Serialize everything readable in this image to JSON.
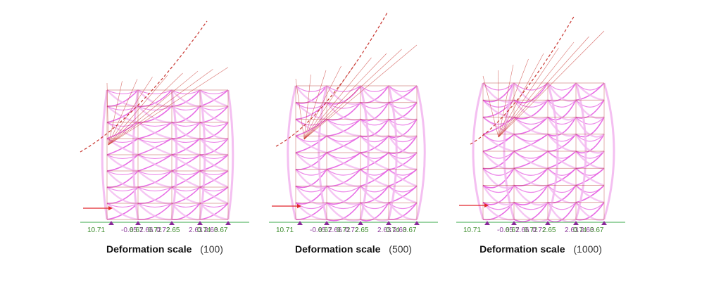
{
  "panels": [
    {
      "caption_label": "Deformation scale",
      "caption_value": "(100)",
      "base_labels": [
        "10.71",
        "-0.65",
        "0.67",
        "2.66",
        "0.72",
        "0.72",
        "2.65",
        "2.63",
        "0.74",
        "2.63",
        "0.67"
      ],
      "scale": 100
    },
    {
      "caption_label": "Deformation scale",
      "caption_value": "(500)",
      "base_labels": [
        "10.71",
        "-0.65",
        "0.67",
        "2.66",
        "0.72",
        "0.72",
        "2.65",
        "2.63",
        "0.74",
        "2.63",
        "0.67"
      ],
      "scale": 500
    },
    {
      "caption_label": "Deformation scale",
      "caption_value": "(1000)",
      "base_labels": [
        "10.71",
        "-0.65",
        "0.67",
        "2.66",
        "0.72",
        "0.72",
        "2.65",
        "2.63",
        "0.74",
        "2.63",
        "0.67"
      ],
      "scale": 1000
    }
  ],
  "colors": {
    "member": "#e455e0",
    "member_light": "#f3b8f0",
    "frame": "#b0302a",
    "deformed": "#c8352f",
    "ground": "#3aa84a",
    "load_arrow": "#e2252a",
    "support": "#8a2a9a"
  }
}
